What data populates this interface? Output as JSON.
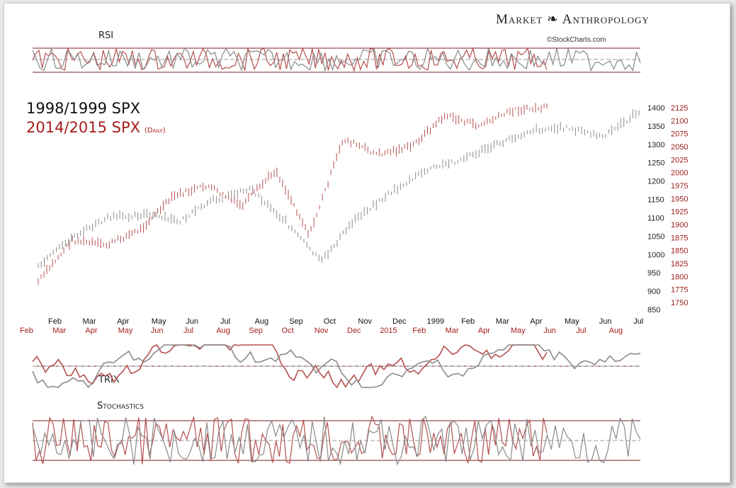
{
  "brand": {
    "name": "Market ❧ Anthropology",
    "credit": "©StockCharts.com"
  },
  "titles": {
    "line1": "1998/1999 SPX",
    "line2": "2014/2015 SPX",
    "line2_sub": "(Daily)"
  },
  "panels": {
    "rsi": "RSI",
    "trix": "TRIX",
    "stochastics": "Stochastics"
  },
  "colors": {
    "series_1998": "#8a8a8a",
    "series_2014": "#b5504f",
    "title_2014": "#a61c1c",
    "right_axis_2014": "#9b1a1a"
  },
  "chart_data": {
    "type": "line",
    "grid": false,
    "legend": "none",
    "series": [
      {
        "name": "1998/1999 SPX",
        "axis": "left",
        "x_labels": [
          "Feb",
          "Mar",
          "Apr",
          "May",
          "Jun",
          "Jul",
          "Aug",
          "Sep",
          "Oct",
          "Nov",
          "Dec",
          "1999",
          "Feb",
          "Mar",
          "Apr",
          "May",
          "Jun",
          "Jul"
        ],
        "values": [
          965,
          1050,
          1100,
          1110,
          1090,
          1150,
          1180,
          1090,
          980,
          1100,
          1170,
          1230,
          1260,
          1300,
          1340,
          1345,
          1320,
          1390
        ]
      },
      {
        "name": "2014/2015 SPX",
        "axis": "right",
        "x_labels": [
          "Feb",
          "Mar",
          "Apr",
          "May",
          "Jun",
          "Jul",
          "Aug",
          "Sep",
          "Oct",
          "Nov",
          "Dec",
          "2015",
          "Feb",
          "Mar",
          "Apr",
          "May",
          "Jun",
          "Jul",
          "Aug"
        ],
        "values": [
          1790,
          1870,
          1860,
          1890,
          1955,
          1975,
          1935,
          2005,
          1880,
          2065,
          2035,
          2050,
          2110,
          2090,
          2120,
          2125
        ]
      }
    ],
    "left_axis": {
      "ticks": [
        850,
        900,
        950,
        1000,
        1050,
        1100,
        1150,
        1200,
        1250,
        1300,
        1350,
        1400
      ]
    },
    "right_axis": {
      "ticks": [
        1750,
        1775,
        1800,
        1825,
        1850,
        1875,
        1900,
        1925,
        1950,
        1975,
        2000,
        2025,
        2050,
        2075,
        2100,
        2125
      ]
    },
    "x_axis_1998": [
      "Feb",
      "Mar",
      "Apr",
      "May",
      "Jun",
      "Jul",
      "Aug",
      "Sep",
      "Oct",
      "Nov",
      "Dec",
      "1999",
      "Feb",
      "Mar",
      "Apr",
      "May",
      "Jun",
      "Jul"
    ],
    "x_axis_2014": [
      "Feb",
      "Mar",
      "Apr",
      "May",
      "Jun",
      "Jul",
      "Aug",
      "Sep",
      "Oct",
      "Nov",
      "Dec",
      "2015",
      "Feb",
      "Mar",
      "Apr",
      "May",
      "Jun",
      "Jul",
      "Aug"
    ]
  }
}
